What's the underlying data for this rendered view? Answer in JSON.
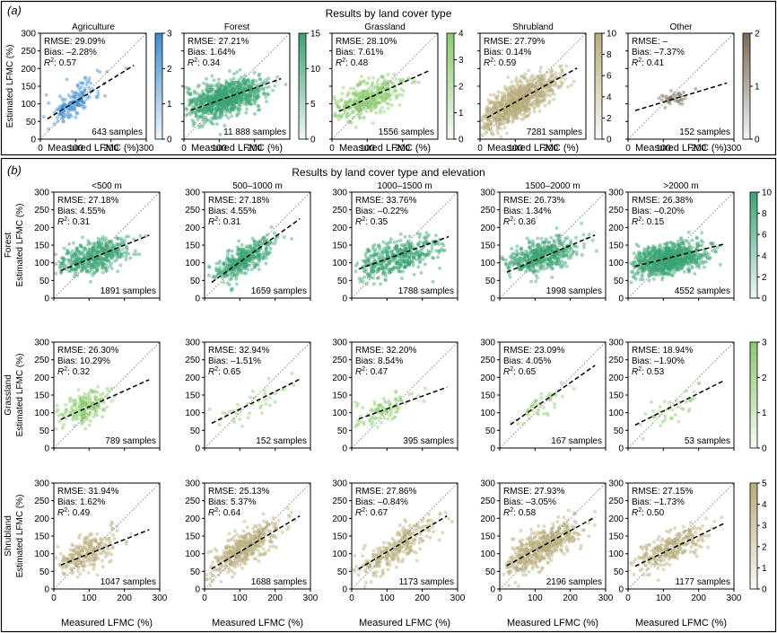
{
  "panel_a": {
    "label": "(a)",
    "title": "Results by land cover type",
    "xlabel": "Measured LFMC (%)",
    "ylabel": "Estimated LFMC (%)"
  },
  "panel_b": {
    "label": "(b)",
    "title": "Results by land cover type and elevation",
    "xlabel": "Measured LFMC (%)",
    "ylabel": "Estimated LFMC (%)",
    "columns": [
      "<500 m",
      "500–1000 m",
      "1000–1500 m",
      "1500–2000 m",
      ">2000 m"
    ],
    "rows": [
      "Forest",
      "Grassland",
      "Shrubland"
    ]
  },
  "colors": {
    "agriculture": "#3b8fd3",
    "forest": "#3aa374",
    "grassland": "#8cc96e",
    "shrubland": "#b8ad7c",
    "other": "#7a6a5a",
    "trend": "#000000",
    "identity": "#888888"
  },
  "chart_data": [
    {
      "type": "scatter",
      "panel": "a",
      "group": "Agriculture",
      "title": "Agriculture",
      "rmse": "RMSE: 29.09%",
      "bias": "Bias: –2.28%",
      "r2": "0.57",
      "samples": "643 samples",
      "slope": 0.62,
      "intercept": 45,
      "x_range": [
        20,
        265
      ],
      "cloud": {
        "cx": 95,
        "cy": 105,
        "sx": 38,
        "sy": 32,
        "rho": 0.7
      },
      "colorbar": {
        "max": 3,
        "ticks": [
          "0",
          "1",
          "2",
          "3"
        ]
      },
      "xlim": [
        0,
        300
      ],
      "ylim": [
        0,
        300
      ],
      "xticks": [
        0,
        100,
        200,
        300
      ],
      "yticks": [
        0,
        50,
        100,
        150,
        200,
        250,
        300
      ]
    },
    {
      "type": "scatter",
      "panel": "a",
      "group": "Forest",
      "title": "Forest",
      "rmse": "RMSE: 27.21%",
      "bias": "Bias: 1.64%",
      "r2": "0.34",
      "samples": "11 888 samples",
      "slope": 0.35,
      "intercept": 75,
      "x_range": [
        20,
        275
      ],
      "cloud": {
        "cx": 115,
        "cy": 115,
        "sx": 55,
        "sy": 28,
        "rho": 0.5
      },
      "colorbar": {
        "max": 15,
        "ticks": [
          "0",
          "5",
          "10",
          "15"
        ]
      },
      "xlim": [
        0,
        300
      ],
      "ylim": [
        0,
        300
      ],
      "xticks": [
        0,
        100,
        200
      ],
      "yticks": []
    },
    {
      "type": "scatter",
      "panel": "a",
      "group": "Grassland",
      "title": "Grassland",
      "rmse": "RMSE: 28.10%",
      "bias": "Bias: 7.61%",
      "r2": "0.48",
      "samples": "1556 samples",
      "slope": 0.45,
      "intercept": 70,
      "x_range": [
        20,
        275
      ],
      "cloud": {
        "cx": 100,
        "cy": 115,
        "sx": 50,
        "sy": 30,
        "rho": 0.6
      },
      "colorbar": {
        "max": 4,
        "ticks": [
          "0",
          "1",
          "2",
          "3",
          "4"
        ]
      },
      "xlim": [
        0,
        300
      ],
      "ylim": [
        0,
        300
      ],
      "xticks": [
        0,
        100,
        200
      ],
      "yticks": []
    },
    {
      "type": "scatter",
      "panel": "a",
      "group": "Shrubland",
      "title": "Shrubland",
      "rmse": "RMSE: 27.79%",
      "bias": "Bias: 0.14%",
      "r2": "0.59",
      "samples": "7281 samples",
      "slope": 0.55,
      "intercept": 50,
      "x_range": [
        20,
        275
      ],
      "cloud": {
        "cx": 105,
        "cy": 105,
        "sx": 55,
        "sy": 38,
        "rho": 0.75
      },
      "colorbar": {
        "max": 10,
        "ticks": [
          "0",
          "2",
          "4",
          "6",
          "8",
          "10"
        ]
      },
      "xlim": [
        0,
        300
      ],
      "ylim": [
        0,
        300
      ],
      "xticks": [
        0,
        100,
        200
      ],
      "yticks": []
    },
    {
      "type": "scatter",
      "panel": "a",
      "group": "Other",
      "title": "Other",
      "rmse": "RMSE: –",
      "bias": "Bias: –7.37%",
      "r2": "0.41",
      "samples": "152 samples",
      "slope": 0.3,
      "intercept": 75,
      "x_range": [
        20,
        280
      ],
      "cloud": {
        "cx": 130,
        "cy": 115,
        "sx": 25,
        "sy": 15,
        "rho": 0.5
      },
      "colorbar": {
        "max": 2,
        "ticks": [
          "0",
          "1",
          "2"
        ]
      },
      "xlim": [
        0,
        300
      ],
      "ylim": [
        0,
        300
      ],
      "xticks": [
        0,
        100,
        200,
        300
      ],
      "yticks": []
    },
    {
      "type": "scatter",
      "panel": "b",
      "group": "Forest",
      "column": "<500 m",
      "rmse": "RMSE: 27.18%",
      "bias": "Bias: 4.55%",
      "r2": "0.31",
      "samples": "1891 samples",
      "slope": 0.4,
      "intercept": 70,
      "x_range": [
        20,
        270
      ],
      "cloud": {
        "cx": 110,
        "cy": 115,
        "sx": 50,
        "sy": 25,
        "rho": 0.45
      },
      "xlim": [
        0,
        300
      ],
      "ylim": [
        0,
        300
      ]
    },
    {
      "type": "scatter",
      "panel": "b",
      "group": "Forest",
      "column": "500–1000 m",
      "rmse": "RMSE: 27.18%",
      "bias": "Bias: 4.55%",
      "r2": "0.31",
      "samples": "1659 samples",
      "slope": 0.72,
      "intercept": 30,
      "x_range": [
        20,
        270
      ],
      "cloud": {
        "cx": 110,
        "cy": 110,
        "sx": 40,
        "sy": 30,
        "rho": 0.75
      },
      "xlim": [
        0,
        300
      ],
      "ylim": [
        0,
        300
      ]
    },
    {
      "type": "scatter",
      "panel": "b",
      "group": "Forest",
      "column": "1000–1500 m",
      "rmse": "RMSE: 33.76%",
      "bias": "Bias: –0.22%",
      "r2": "0.35",
      "samples": "1788 samples",
      "slope": 0.36,
      "intercept": 75,
      "x_range": [
        20,
        275
      ],
      "cloud": {
        "cx": 125,
        "cy": 115,
        "sx": 60,
        "sy": 28,
        "rho": 0.5
      },
      "xlim": [
        0,
        300
      ],
      "ylim": [
        0,
        300
      ]
    },
    {
      "type": "scatter",
      "panel": "b",
      "group": "Forest",
      "column": "1500–2000 m",
      "rmse": "RMSE: 26.73%",
      "bias": "Bias: 1.34%",
      "r2": "0.36",
      "samples": "1998 samples",
      "slope": 0.42,
      "intercept": 65,
      "x_range": [
        20,
        270
      ],
      "cloud": {
        "cx": 120,
        "cy": 120,
        "sx": 50,
        "sy": 25,
        "rho": 0.5
      },
      "xlim": [
        0,
        300
      ],
      "ylim": [
        0,
        300
      ]
    },
    {
      "type": "scatter",
      "panel": "b",
      "group": "Forest",
      "column": ">2000 m",
      "rmse": "RMSE: 26.38%",
      "bias": "Bias: –0.20%",
      "r2": "0.15",
      "samples": "4552 samples",
      "slope": 0.25,
      "intercept": 85,
      "x_range": [
        20,
        275
      ],
      "cloud": {
        "cx": 115,
        "cy": 110,
        "sx": 48,
        "sy": 22,
        "rho": 0.35
      },
      "colorbar": {
        "max": 10,
        "ticks": [
          "0",
          "2",
          "4",
          "6",
          "8",
          "10"
        ]
      },
      "xlim": [
        0,
        300
      ],
      "ylim": [
        0,
        300
      ]
    },
    {
      "type": "scatter",
      "panel": "b",
      "group": "Grassland",
      "column": "<500 m",
      "rmse": "RMSE: 26.30%",
      "bias": "Bias: 10.29%",
      "r2": "0.32",
      "samples": "789 samples",
      "slope": 0.45,
      "intercept": 72,
      "x_range": [
        20,
        270
      ],
      "cloud": {
        "cx": 90,
        "cy": 115,
        "sx": 35,
        "sy": 25,
        "rho": 0.55
      },
      "xlim": [
        0,
        300
      ],
      "ylim": [
        0,
        300
      ]
    },
    {
      "type": "scatter",
      "panel": "b",
      "group": "Grassland",
      "column": "500–1000 m",
      "rmse": "RMSE: 32.94%",
      "bias": "Bias: –1.51%",
      "r2": "0.65",
      "samples": "152 samples",
      "slope": 0.5,
      "intercept": 60,
      "x_range": [
        20,
        270
      ],
      "cloud": {
        "cx": 130,
        "cy": 120,
        "sx": 50,
        "sy": 32,
        "rho": 0.7
      },
      "xlim": [
        0,
        300
      ],
      "ylim": [
        0,
        300
      ]
    },
    {
      "type": "scatter",
      "panel": "b",
      "group": "Grassland",
      "column": "1000–1500 m",
      "rmse": "RMSE: 32.20%",
      "bias": "Bias: 8.54%",
      "r2": "0.47",
      "samples": "395 samples",
      "slope": 0.36,
      "intercept": 75,
      "x_range": [
        20,
        270
      ],
      "cloud": {
        "cx": 95,
        "cy": 110,
        "sx": 42,
        "sy": 22,
        "rho": 0.55
      },
      "xlim": [
        0,
        300
      ],
      "ylim": [
        0,
        300
      ]
    },
    {
      "type": "scatter",
      "panel": "b",
      "group": "Grassland",
      "column": "1500–2000 m",
      "rmse": "RMSE: 23.09%",
      "bias": "Bias: 4.05%",
      "r2": "0.65",
      "samples": "167 samples",
      "slope": 0.7,
      "intercept": 45,
      "x_range": [
        30,
        270
      ],
      "cloud": {
        "cx": 115,
        "cy": 125,
        "sx": 40,
        "sy": 30,
        "rho": 0.75
      },
      "xlim": [
        0,
        300
      ],
      "ylim": [
        0,
        300
      ]
    },
    {
      "type": "scatter",
      "panel": "b",
      "group": "Grassland",
      "column": ">2000 m",
      "rmse": "RMSE: 18.94%",
      "bias": "Bias: –1.90%",
      "r2": "0.53",
      "samples": "53 samples",
      "slope": 0.5,
      "intercept": 55,
      "x_range": [
        20,
        270
      ],
      "cloud": {
        "cx": 125,
        "cy": 115,
        "sx": 40,
        "sy": 28,
        "rho": 0.7
      },
      "colorbar": {
        "max": 3,
        "ticks": [
          "0",
          "1",
          "2",
          "3"
        ]
      },
      "xlim": [
        0,
        300
      ],
      "ylim": [
        0,
        300
      ]
    },
    {
      "type": "scatter",
      "panel": "b",
      "group": "Shrubland",
      "column": "<500 m",
      "rmse": "RMSE: 31.94%",
      "bias": "Bias: 1.62%",
      "r2": "0.49",
      "samples": "1047 samples",
      "slope": 0.4,
      "intercept": 60,
      "x_range": [
        20,
        270
      ],
      "cloud": {
        "cx": 90,
        "cy": 100,
        "sx": 42,
        "sy": 30,
        "rho": 0.6
      },
      "xlim": [
        0,
        300
      ],
      "ylim": [
        0,
        300
      ]
    },
    {
      "type": "scatter",
      "panel": "b",
      "group": "Shrubland",
      "column": "500–1000 m",
      "rmse": "RMSE: 25.13%",
      "bias": "Bias: 5.37%",
      "r2": "0.64",
      "samples": "1688 samples",
      "slope": 0.6,
      "intercept": 45,
      "x_range": [
        20,
        270
      ],
      "cloud": {
        "cx": 110,
        "cy": 115,
        "sx": 50,
        "sy": 38,
        "rho": 0.78
      },
      "xlim": [
        0,
        300
      ],
      "ylim": [
        0,
        300
      ]
    },
    {
      "type": "scatter",
      "panel": "b",
      "group": "Shrubland",
      "column": "1000–1500 m",
      "rmse": "RMSE: 27.86%",
      "bias": "Bias: –0.84%",
      "r2": "0.67",
      "samples": "1173 samples",
      "slope": 0.6,
      "intercept": 45,
      "x_range": [
        20,
        270
      ],
      "cloud": {
        "cx": 120,
        "cy": 115,
        "sx": 55,
        "sy": 40,
        "rho": 0.8
      },
      "xlim": [
        0,
        300
      ],
      "ylim": [
        0,
        300
      ]
    },
    {
      "type": "scatter",
      "panel": "b",
      "group": "Shrubland",
      "column": "1500–2000 m",
      "rmse": "RMSE: 27.93%",
      "bias": "Bias: –3.05%",
      "r2": "0.58",
      "samples": "2196 samples",
      "slope": 0.55,
      "intercept": 55,
      "x_range": [
        20,
        270
      ],
      "cloud": {
        "cx": 115,
        "cy": 115,
        "sx": 55,
        "sy": 38,
        "rho": 0.75
      },
      "xlim": [
        0,
        300
      ],
      "ylim": [
        0,
        300
      ]
    },
    {
      "type": "scatter",
      "panel": "b",
      "group": "Shrubland",
      "column": ">2000 m",
      "rmse": "RMSE: 27.15%",
      "bias": "Bias: –1.73%",
      "r2": "0.50",
      "samples": "1177 samples",
      "slope": 0.48,
      "intercept": 55,
      "x_range": [
        20,
        270
      ],
      "cloud": {
        "cx": 120,
        "cy": 115,
        "sx": 48,
        "sy": 32,
        "rho": 0.7
      },
      "colorbar": {
        "max": 5,
        "ticks": [
          "0",
          "1",
          "2",
          "3",
          "4",
          "5"
        ]
      },
      "xlim": [
        0,
        300
      ],
      "ylim": [
        0,
        300
      ]
    }
  ]
}
